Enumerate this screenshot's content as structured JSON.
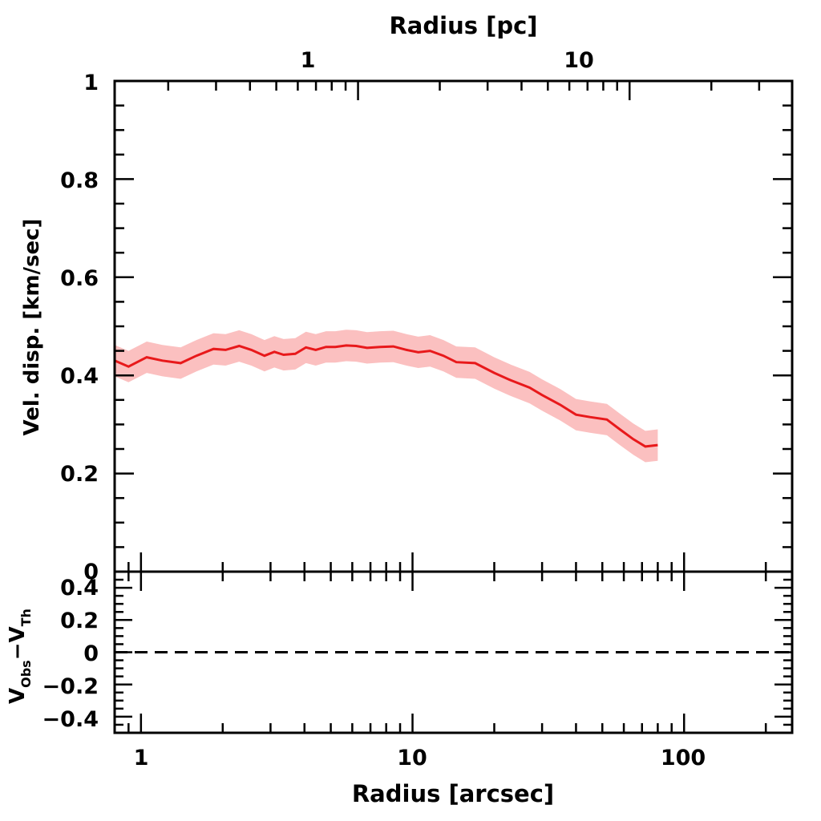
{
  "chart_data": {
    "type": "line",
    "panels": [
      {
        "id": "top",
        "xlabel": "Radius [arcsec]",
        "ylabel": "Vel. disp. [km/sec]",
        "top_xlabel": "Radius [pc]",
        "xscale": "log",
        "xlim": [
          0.8,
          250
        ],
        "ylim": [
          0,
          1
        ],
        "yticks": [
          "0",
          "0.2",
          "0.4",
          "0.6",
          "0.8",
          "1"
        ],
        "top_xticks": [
          {
            "label": "1",
            "x_arcsec": 6.3
          },
          {
            "label": "10",
            "x_arcsec": 63
          }
        ],
        "series": [
          {
            "color": "#e8191b",
            "band_color": "#fbc0c0",
            "x": [
              0.8,
              0.9,
              1.05,
              1.2,
              1.4,
              1.6,
              1.85,
              2.05,
              2.3,
              2.55,
              2.85,
              3.1,
              3.35,
              3.7,
              4.05,
              4.4,
              4.8,
              5.2,
              5.7,
              6.2,
              6.8,
              7.6,
              8.5,
              9.5,
              10.5,
              11.6,
              13,
              14.5,
              17,
              20,
              23,
              27,
              30,
              35,
              40,
              45,
              52,
              58,
              65,
              72,
              80
            ],
            "y": [
              0.43,
              0.418,
              0.437,
              0.43,
              0.425,
              0.44,
              0.454,
              0.452,
              0.46,
              0.452,
              0.44,
              0.448,
              0.442,
              0.444,
              0.457,
              0.452,
              0.458,
              0.458,
              0.461,
              0.46,
              0.456,
              0.458,
              0.459,
              0.452,
              0.447,
              0.45,
              0.44,
              0.427,
              0.425,
              0.405,
              0.39,
              0.375,
              0.36,
              0.34,
              0.32,
              0.315,
              0.31,
              0.29,
              0.27,
              0.255,
              0.258
            ],
            "err": 0.032
          }
        ]
      },
      {
        "id": "bottom",
        "xlabel": "Radius [arcsec]",
        "ylabel_main": "V",
        "ylabel_sub1": "Obs",
        "ylabel_sep": "−V",
        "ylabel_sub2": "Th",
        "xscale": "log",
        "xlim": [
          0.8,
          250
        ],
        "ylim": [
          -0.5,
          0.5
        ],
        "yticks": [
          "0.4",
          "0.2",
          "0",
          "−0.2",
          "−0.4"
        ],
        "xticks": [
          "1",
          "10",
          "100"
        ],
        "reference_line": {
          "y": 0,
          "style": "dashed"
        }
      }
    ]
  }
}
